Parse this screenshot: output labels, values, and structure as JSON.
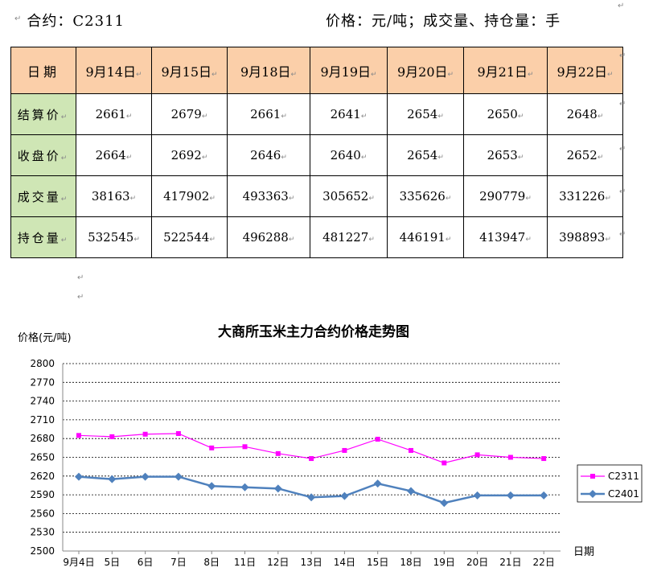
{
  "header": {
    "contract": "合约：C2311",
    "units": "价格：元/吨；成交量、持仓量：手"
  },
  "table": {
    "date_header": "日期",
    "dates": [
      "9月14日",
      "9月15日",
      "9月18日",
      "9月19日",
      "9月20日",
      "9月21日",
      "9月22日"
    ],
    "rows": [
      {
        "label": "结算价",
        "values": [
          "2661",
          "2679",
          "2661",
          "2641",
          "2654",
          "2650",
          "2648"
        ]
      },
      {
        "label": "收盘价",
        "values": [
          "2664",
          "2692",
          "2646",
          "2640",
          "2654",
          "2653",
          "2652"
        ]
      },
      {
        "label": "成交量",
        "values": [
          "38163",
          "417902",
          "493363",
          "305652",
          "335626",
          "290779",
          "331226"
        ]
      },
      {
        "label": "持仓量",
        "values": [
          "532545",
          "522544",
          "496288",
          "481227",
          "446191",
          "413947",
          "398893"
        ]
      }
    ],
    "header_color": "#fbcfa9",
    "label_color": "#cfe6b5"
  },
  "chart_data": {
    "type": "line",
    "title": "大商所玉米主力合约价格走势图",
    "ylabel": "价格(元/吨)",
    "xlabel": "日期",
    "categories": [
      "9月4日",
      "5日",
      "6日",
      "7日",
      "8日",
      "11日",
      "12日",
      "13日",
      "14日",
      "15日",
      "18日",
      "19日",
      "20日",
      "21日",
      "22日"
    ],
    "ylim": [
      2500,
      2800
    ],
    "yticks": [
      2500,
      2530,
      2560,
      2590,
      2620,
      2650,
      2680,
      2710,
      2740,
      2770,
      2800
    ],
    "grid": true,
    "legend": "right",
    "series": [
      {
        "name": "C2311",
        "color": "#ff00ff",
        "marker": "square",
        "values": [
          2685,
          2683,
          2687,
          2688,
          2665,
          2667,
          2656,
          2648,
          2661,
          2679,
          2661,
          2641,
          2654,
          2650,
          2648
        ]
      },
      {
        "name": "C2401",
        "color": "#4f81bd",
        "marker": "diamond",
        "values": [
          2619,
          2615,
          2619,
          2619,
          2604,
          2602,
          2600,
          2586,
          2588,
          2608,
          2596,
          2577,
          2589,
          2589,
          2589
        ]
      }
    ]
  }
}
